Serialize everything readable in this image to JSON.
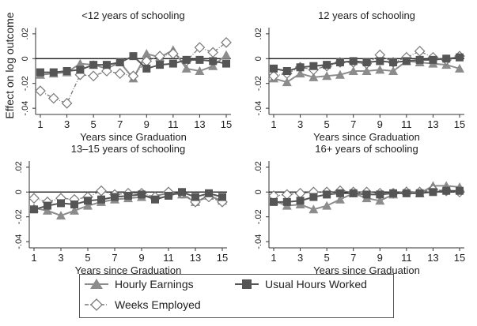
{
  "colors": {
    "hourly": "#8c8c8c",
    "weeks": "#7a7a7a",
    "hours": "#555555",
    "zero_line": "#000000",
    "axis": "#333333"
  },
  "legend": {
    "hourly_label": "Hourly Earnings",
    "hours_label": "Usual Hours Worked",
    "weeks_label": "Weeks Employed"
  },
  "figure": {
    "ylabel": "Effect on log outcome"
  },
  "chart_data": [
    {
      "type": "line",
      "title": "<12 years of schooling",
      "xlabel": "Years since Graduation",
      "ylabel": "Effect on log outcome",
      "xlim": [
        1,
        15
      ],
      "ylim": [
        -0.045,
        0.025
      ],
      "xticks": [
        1,
        3,
        5,
        7,
        9,
        11,
        13,
        15
      ],
      "yticks": [
        -0.04,
        -0.02,
        0,
        0.02
      ],
      "ytick_labels": [
        "-.04",
        "-.02",
        "0",
        ".02"
      ],
      "x": [
        1,
        2,
        3,
        4,
        5,
        6,
        7,
        8,
        9,
        10,
        11,
        12,
        13,
        14,
        15
      ],
      "series": [
        {
          "name": "Hourly Earnings",
          "values": [
            -0.013,
            -0.012,
            -0.011,
            -0.004,
            -0.005,
            -0.008,
            -0.003,
            -0.016,
            0.004,
            0.001,
            0.007,
            -0.008,
            -0.01,
            -0.006,
            0.003
          ]
        },
        {
          "name": "Weeks Employed",
          "values": [
            -0.026,
            -0.032,
            -0.036,
            -0.013,
            -0.014,
            -0.01,
            -0.012,
            -0.014,
            -0.002,
            0.002,
            0.004,
            -0.002,
            0.009,
            0.005,
            0.013
          ]
        },
        {
          "name": "Usual Hours Worked",
          "values": [
            -0.011,
            -0.011,
            -0.01,
            -0.009,
            -0.005,
            -0.005,
            -0.003,
            0.002,
            -0.008,
            -0.005,
            -0.004,
            -0.001,
            -0.001,
            -0.002,
            -0.004
          ]
        }
      ]
    },
    {
      "type": "line",
      "title": "12 years of schooling",
      "xlabel": "Years since Graduation",
      "ylabel": "",
      "xlim": [
        1,
        15
      ],
      "ylim": [
        -0.045,
        0.025
      ],
      "xticks": [
        1,
        3,
        5,
        7,
        9,
        11,
        13,
        15
      ],
      "yticks": [
        -0.04,
        -0.02,
        0,
        0.02
      ],
      "ytick_labels": [
        "-.04",
        "-.02",
        "0",
        ".02"
      ],
      "x": [
        1,
        2,
        3,
        4,
        5,
        6,
        7,
        8,
        9,
        10,
        11,
        12,
        13,
        14,
        15
      ],
      "series": [
        {
          "name": "Hourly Earnings",
          "values": [
            -0.016,
            -0.019,
            -0.012,
            -0.015,
            -0.014,
            -0.013,
            -0.01,
            -0.01,
            -0.009,
            -0.01,
            -0.002,
            -0.003,
            -0.004,
            -0.005,
            -0.008
          ]
        },
        {
          "name": "Weeks Employed",
          "values": [
            -0.014,
            -0.012,
            -0.007,
            -0.009,
            -0.006,
            -0.003,
            -0.003,
            -0.004,
            0.003,
            -0.003,
            0.001,
            0.006,
            0.001,
            -0.001,
            0.002
          ]
        },
        {
          "name": "Usual Hours Worked",
          "values": [
            -0.008,
            -0.01,
            -0.007,
            -0.006,
            -0.005,
            -0.003,
            -0.002,
            -0.003,
            -0.002,
            -0.003,
            -0.002,
            -0.001,
            -0.001,
            0.0,
            0.001
          ]
        }
      ]
    },
    {
      "type": "line",
      "title": "13–15 years of schooling",
      "xlabel": "Years since Graduation",
      "ylabel": "",
      "xlim": [
        1,
        15
      ],
      "ylim": [
        -0.045,
        0.025
      ],
      "xticks": [
        1,
        3,
        5,
        7,
        9,
        11,
        13,
        15
      ],
      "yticks": [
        -0.04,
        -0.02,
        0,
        0.02
      ],
      "ytick_labels": [
        "-.04",
        "-.02",
        "0",
        ".02"
      ],
      "x": [
        1,
        2,
        3,
        4,
        5,
        6,
        7,
        8,
        9,
        10,
        11,
        12,
        13,
        14,
        15
      ],
      "series": [
        {
          "name": "Hourly Earnings",
          "values": [
            -0.013,
            -0.015,
            -0.019,
            -0.015,
            -0.011,
            -0.008,
            -0.006,
            -0.005,
            -0.004,
            -0.003,
            -0.001,
            -0.002,
            -0.008,
            -0.003,
            -0.007
          ]
        },
        {
          "name": "Weeks Employed",
          "values": [
            -0.005,
            -0.008,
            -0.005,
            -0.006,
            -0.004,
            0.001,
            -0.002,
            -0.001,
            -0.001,
            -0.004,
            0.0,
            -0.001,
            -0.008,
            -0.004,
            -0.008
          ]
        },
        {
          "name": "Usual Hours Worked",
          "values": [
            -0.014,
            -0.011,
            -0.009,
            -0.01,
            -0.007,
            -0.006,
            -0.004,
            -0.003,
            -0.002,
            -0.006,
            -0.003,
            0.0,
            -0.004,
            -0.001,
            -0.004
          ]
        }
      ]
    },
    {
      "type": "line",
      "title": "16+ years of schooling",
      "xlabel": "Years since Graduation",
      "ylabel": "",
      "xlim": [
        1,
        15
      ],
      "ylim": [
        -0.045,
        0.025
      ],
      "xticks": [
        1,
        3,
        5,
        7,
        9,
        11,
        13,
        15
      ],
      "yticks": [
        -0.04,
        -0.02,
        0,
        0.02
      ],
      "ytick_labels": [
        "-.04",
        "-.02",
        "0",
        ".02"
      ],
      "x": [
        1,
        2,
        3,
        4,
        5,
        6,
        7,
        8,
        9,
        10,
        11,
        12,
        13,
        14,
        15
      ],
      "series": [
        {
          "name": "Hourly Earnings",
          "values": [
            -0.007,
            -0.011,
            -0.01,
            -0.014,
            -0.011,
            -0.006,
            -0.001,
            -0.005,
            -0.007,
            -0.002,
            0.001,
            -0.001,
            0.005,
            0.005,
            0.004
          ]
        },
        {
          "name": "Weeks Employed",
          "values": [
            -0.003,
            -0.002,
            -0.001,
            0.0,
            0.0,
            0.001,
            0.0,
            0.0,
            -0.001,
            -0.001,
            0.0,
            0.0,
            0.002,
            0.001,
            0.0
          ]
        },
        {
          "name": "Usual Hours Worked",
          "values": [
            -0.008,
            -0.008,
            -0.007,
            -0.004,
            -0.002,
            -0.001,
            -0.001,
            -0.002,
            -0.002,
            -0.001,
            -0.001,
            -0.001,
            0.0,
            0.001,
            0.001
          ]
        }
      ]
    }
  ]
}
